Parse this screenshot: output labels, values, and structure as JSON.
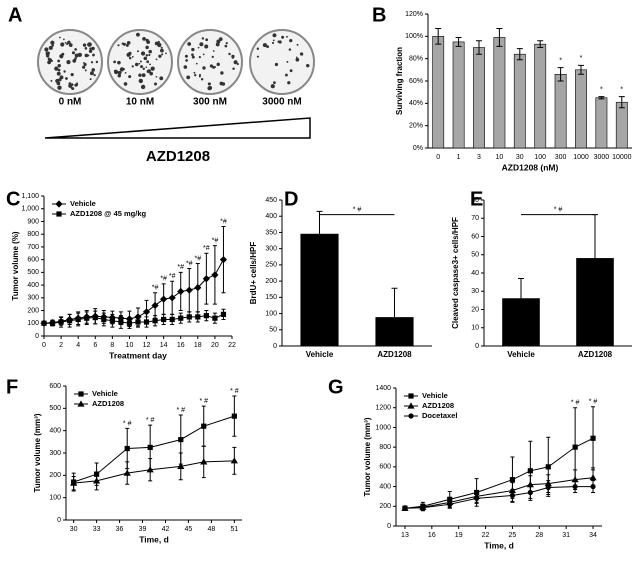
{
  "panel_a": {
    "panel": "A",
    "labels": [
      "0 nM",
      "10 nM",
      "300 nM",
      "3000 nM"
    ],
    "drug": "AZD1208"
  },
  "chart_data": [
    {
      "type": "bar",
      "panel": "B",
      "xlabel": "AZD1208 (nM)",
      "ylabel": "Surviving fraction",
      "color": "#a6a6a6",
      "categories": [
        "0",
        "1",
        "3",
        "10",
        "30",
        "100",
        "300",
        "1000",
        "3000",
        "10000"
      ],
      "values": [
        100,
        95,
        90,
        99,
        84,
        93,
        66,
        70,
        45,
        41
      ],
      "errors": [
        7,
        4,
        6,
        8,
        5,
        3,
        6,
        4,
        1,
        5
      ],
      "markers": [
        null,
        null,
        null,
        null,
        null,
        null,
        "*",
        "*",
        "*",
        "*"
      ],
      "ylim": [
        0,
        120
      ],
      "yticks": [
        {
          "value": 0,
          "label": "0%"
        },
        {
          "value": 20,
          "label": "20%"
        },
        {
          "value": 40,
          "label": "40%"
        },
        {
          "value": 60,
          "label": "60%"
        },
        {
          "value": 80,
          "label": "80%"
        },
        {
          "value": 100,
          "label": "100%"
        },
        {
          "value": 120,
          "label": "120%"
        }
      ]
    },
    {
      "type": "line",
      "panel": "C",
      "xlabel": "Treatment day",
      "ylabel": "Tumor volume (%)",
      "legend": "upper left",
      "x": [
        0,
        1,
        2,
        3,
        4,
        5,
        6,
        7,
        8,
        9,
        10,
        11,
        12,
        13,
        14,
        15,
        16,
        17,
        18,
        19,
        20,
        21
      ],
      "series": [
        {
          "name": "Vehicle",
          "color": "#000000",
          "marker": "diamond",
          "values": [
            100,
            105,
            115,
            130,
            140,
            150,
            155,
            150,
            145,
            140,
            135,
            150,
            190,
            240,
            290,
            300,
            350,
            360,
            380,
            450,
            480,
            600
          ],
          "errors": [
            10,
            20,
            30,
            40,
            50,
            50,
            60,
            50,
            50,
            50,
            60,
            70,
            90,
            100,
            120,
            130,
            150,
            170,
            190,
            200,
            230,
            260
          ],
          "markers": [
            null,
            null,
            null,
            null,
            null,
            null,
            null,
            null,
            null,
            null,
            null,
            null,
            null,
            "*#",
            "*#",
            "*#",
            "*#",
            "*#",
            "*#",
            "*#",
            "*#",
            "*#"
          ]
        },
        {
          "name": "AZD1208 @ 45 mg/kg",
          "color": "#000000",
          "marker": "square",
          "values": [
            100,
            100,
            110,
            120,
            130,
            140,
            145,
            130,
            120,
            110,
            100,
            110,
            110,
            120,
            130,
            130,
            140,
            150,
            150,
            160,
            140,
            170
          ],
          "errors": [
            10,
            20,
            40,
            50,
            50,
            50,
            50,
            50,
            50,
            50,
            40,
            40,
            40,
            40,
            40,
            40,
            40,
            40,
            40,
            40,
            40,
            40
          ]
        }
      ],
      "xlim": [
        0,
        22
      ],
      "xticks": [
        0,
        2,
        4,
        6,
        8,
        10,
        12,
        14,
        16,
        18,
        20,
        22
      ],
      "ylim": [
        0,
        1100
      ],
      "yticks": [
        0,
        100,
        200,
        300,
        400,
        500,
        600,
        700,
        800,
        900,
        {
          "value": 1000,
          "label": "1,000"
        },
        {
          "value": 1100,
          "label": "1,100"
        }
      ]
    },
    {
      "type": "bar",
      "panel": "D",
      "ylabel": "BrdU+ cells/HPF",
      "color": "#000000",
      "comparison": "* #",
      "categories": [
        "Vehicle",
        "AZD1208"
      ],
      "values": [
        345,
        88
      ],
      "errors": [
        70,
        90
      ],
      "ylim": [
        0,
        450
      ],
      "yticks": [
        0,
        50,
        100,
        150,
        200,
        250,
        300,
        350,
        400,
        450
      ]
    },
    {
      "type": "bar",
      "panel": "E",
      "ylabel": "Cleaved caspase3+ cells/HPF",
      "color": "#000000",
      "comparison": "* #",
      "categories": [
        "Vehicle",
        "AZD1208"
      ],
      "values": [
        26,
        48
      ],
      "errors": [
        11,
        24
      ],
      "ylim": [
        0,
        80
      ],
      "yticks": [
        0,
        10,
        20,
        30,
        40,
        50,
        60,
        70,
        80
      ]
    },
    {
      "type": "line",
      "panel": "F",
      "xlabel": "Time, d",
      "ylabel": "Tumor volume (mm³)",
      "legend": "upper left",
      "x": [
        30,
        33,
        37,
        40,
        44,
        47,
        51
      ],
      "series": [
        {
          "name": "Vehicle",
          "color": "#000000",
          "marker": "square",
          "values": [
            170,
            205,
            320,
            325,
            360,
            420,
            465
          ],
          "errors": [
            40,
            50,
            90,
            100,
            110,
            90,
            90
          ],
          "markers": [
            null,
            null,
            "* #",
            "* #",
            "* #",
            "* #",
            "* #"
          ]
        },
        {
          "name": "AZD1208",
          "color": "#000000",
          "marker": "triangle",
          "values": [
            165,
            175,
            210,
            225,
            240,
            260,
            265
          ],
          "errors": [
            30,
            40,
            50,
            50,
            60,
            70,
            60
          ]
        }
      ],
      "xlim": [
        29,
        52
      ],
      "xticks": [
        30,
        33,
        36,
        39,
        42,
        45,
        48,
        51
      ],
      "ylim": [
        0,
        600
      ],
      "yticks": [
        0,
        100,
        200,
        300,
        400,
        500,
        600
      ]
    },
    {
      "type": "line",
      "panel": "G",
      "xlabel": "Time, d",
      "ylabel": "Tumor volume (mm³)",
      "legend": "upper left",
      "x": [
        13,
        15,
        18,
        21,
        25,
        27,
        29,
        32,
        34
      ],
      "series": [
        {
          "name": "Vehicle",
          "color": "#000000",
          "marker": "square",
          "values": [
            180,
            200,
            270,
            340,
            470,
            560,
            600,
            800,
            890
          ],
          "errors": [
            20,
            40,
            80,
            140,
            230,
            300,
            300,
            400,
            320
          ],
          "markers": [
            null,
            null,
            null,
            null,
            null,
            null,
            null,
            "* #",
            "* #"
          ]
        },
        {
          "name": "AZD1208",
          "color": "#000000",
          "marker": "triangle",
          "values": [
            180,
            190,
            240,
            300,
            360,
            420,
            430,
            470,
            490
          ],
          "errors": [
            20,
            30,
            50,
            60,
            80,
            90,
            90,
            100,
            100
          ]
        },
        {
          "name": "Docetaxel",
          "color": "#000000",
          "marker": "circle",
          "values": [
            180,
            185,
            220,
            280,
            310,
            340,
            390,
            400,
            400
          ],
          "errors": [
            20,
            30,
            40,
            50,
            60,
            60,
            70,
            60,
            60
          ]
        }
      ],
      "xlim": [
        12,
        35
      ],
      "xticks": [
        13,
        16,
        19,
        22,
        25,
        28,
        31,
        34
      ],
      "ylim": [
        0,
        1400
      ],
      "yticks": [
        0,
        200,
        400,
        600,
        800,
        1000,
        1200,
        1400
      ]
    }
  ]
}
